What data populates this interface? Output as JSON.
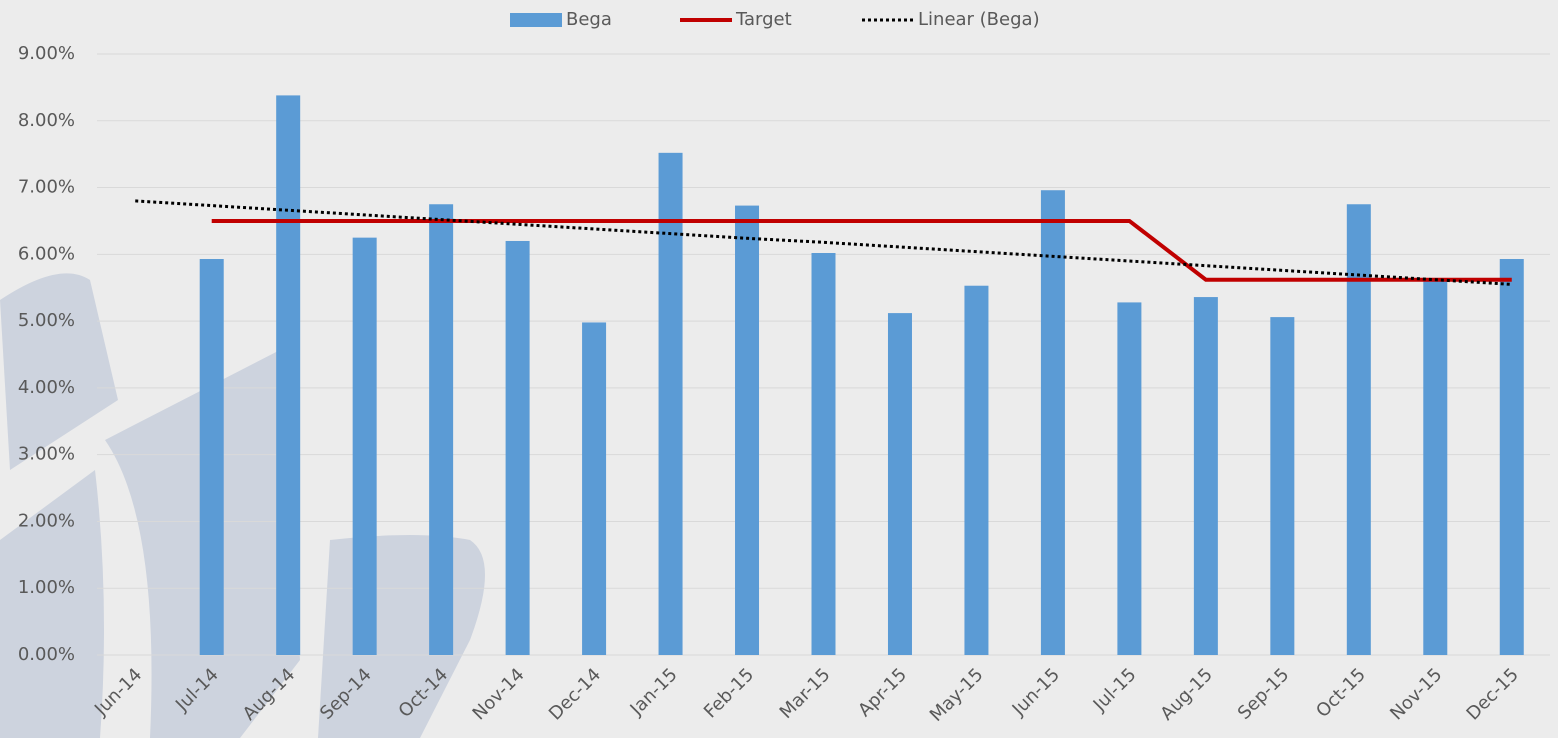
{
  "chart_data": {
    "type": "bar",
    "categories": [
      "Jun-14",
      "Jul-14",
      "Aug-14",
      "Sep-14",
      "Oct-14",
      "Nov-14",
      "Dec-14",
      "Jan-15",
      "Feb-15",
      "Mar-15",
      "Apr-15",
      "May-15",
      "Jun-15",
      "Jul-15",
      "Aug-15",
      "Sep-15",
      "Oct-15",
      "Nov-15",
      "Dec-15"
    ],
    "series": [
      {
        "name": "Bega",
        "type": "bar",
        "color": "#5b9bd5",
        "values": [
          null,
          5.93,
          8.38,
          6.25,
          6.75,
          6.2,
          4.98,
          7.52,
          6.73,
          6.02,
          5.12,
          5.53,
          6.96,
          5.28,
          5.36,
          5.06,
          6.75,
          5.62,
          5.93
        ]
      },
      {
        "name": "Target",
        "type": "line",
        "color": "#c00000",
        "values": [
          null,
          6.5,
          6.5,
          6.5,
          6.5,
          6.5,
          6.5,
          6.5,
          6.5,
          6.5,
          6.5,
          6.5,
          6.5,
          6.5,
          5.62,
          5.62,
          5.62,
          5.62,
          5.62
        ]
      },
      {
        "name": "Linear (Bega)",
        "type": "line",
        "color": "#000000",
        "dash": "dotted",
        "values": [
          6.8,
          6.73,
          6.66,
          6.59,
          6.52,
          6.45,
          6.38,
          6.31,
          6.24,
          6.18,
          6.11,
          6.04,
          5.97,
          5.9,
          5.83,
          5.76,
          5.69,
          5.62,
          5.55
        ]
      }
    ],
    "ylim": [
      0,
      9
    ],
    "yticks": [
      {
        "value": 0,
        "label": "0.00%"
      },
      {
        "value": 1,
        "label": "1.00%"
      },
      {
        "value": 2,
        "label": "2.00%"
      },
      {
        "value": 3,
        "label": "3.00%"
      },
      {
        "value": 4,
        "label": "4.00%"
      },
      {
        "value": 5,
        "label": "5.00%"
      },
      {
        "value": 6,
        "label": "6.00%"
      },
      {
        "value": 7,
        "label": "7.00%"
      },
      {
        "value": 8,
        "label": "8.00%"
      },
      {
        "value": 9,
        "label": "9.00%"
      }
    ],
    "grid": true
  }
}
